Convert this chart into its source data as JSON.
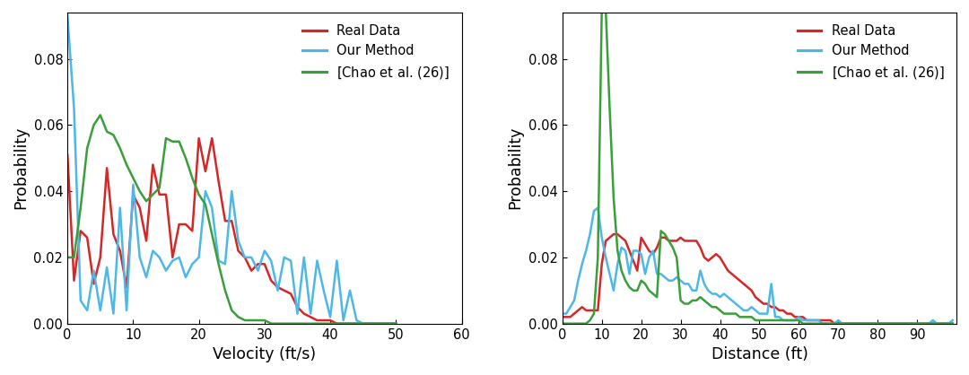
{
  "vel_x": [
    0,
    1,
    2,
    3,
    4,
    5,
    6,
    7,
    8,
    9,
    10,
    11,
    12,
    13,
    14,
    15,
    16,
    17,
    18,
    19,
    20,
    21,
    22,
    23,
    24,
    25,
    26,
    27,
    28,
    29,
    30,
    31,
    32,
    33,
    34,
    35,
    36,
    37,
    38,
    39,
    40,
    41,
    42,
    43,
    44,
    45,
    46,
    47,
    48,
    49,
    50
  ],
  "vel_real": [
    0.051,
    0.013,
    0.028,
    0.026,
    0.012,
    0.02,
    0.047,
    0.027,
    0.022,
    0.011,
    0.039,
    0.035,
    0.025,
    0.048,
    0.039,
    0.039,
    0.02,
    0.03,
    0.03,
    0.028,
    0.056,
    0.046,
    0.056,
    0.043,
    0.031,
    0.031,
    0.022,
    0.02,
    0.016,
    0.018,
    0.018,
    0.013,
    0.011,
    0.01,
    0.009,
    0.005,
    0.003,
    0.002,
    0.001,
    0.001,
    0.001,
    0.0,
    0.0,
    0.0,
    0.0,
    0.0,
    0.0,
    0.0,
    0.0,
    0.0,
    0.0
  ],
  "vel_ours": [
    0.093,
    0.065,
    0.007,
    0.004,
    0.016,
    0.004,
    0.017,
    0.003,
    0.035,
    0.004,
    0.042,
    0.02,
    0.014,
    0.022,
    0.02,
    0.016,
    0.019,
    0.02,
    0.014,
    0.018,
    0.02,
    0.04,
    0.035,
    0.019,
    0.018,
    0.04,
    0.025,
    0.02,
    0.02,
    0.016,
    0.022,
    0.019,
    0.01,
    0.02,
    0.019,
    0.003,
    0.02,
    0.003,
    0.019,
    0.01,
    0.002,
    0.019,
    0.001,
    0.01,
    0.001,
    0.0,
    0.0,
    0.0,
    0.0,
    0.0,
    0.0
  ],
  "vel_chao": [
    0.02,
    0.02,
    0.035,
    0.053,
    0.06,
    0.063,
    0.058,
    0.057,
    0.053,
    0.048,
    0.044,
    0.04,
    0.037,
    0.039,
    0.041,
    0.056,
    0.055,
    0.055,
    0.05,
    0.044,
    0.039,
    0.036,
    0.027,
    0.018,
    0.01,
    0.004,
    0.002,
    0.001,
    0.001,
    0.001,
    0.001,
    0.0,
    0.0,
    0.0,
    0.0,
    0.0,
    0.0,
    0.0,
    0.0,
    0.0,
    0.0,
    0.0,
    0.0,
    0.0,
    0.0,
    0.0,
    0.0,
    0.0,
    0.0,
    0.0,
    0.0
  ],
  "dist_x": [
    0,
    1,
    2,
    3,
    4,
    5,
    6,
    7,
    8,
    9,
    10,
    11,
    12,
    13,
    14,
    15,
    16,
    17,
    18,
    19,
    20,
    21,
    22,
    23,
    24,
    25,
    26,
    27,
    28,
    29,
    30,
    31,
    32,
    33,
    34,
    35,
    36,
    37,
    38,
    39,
    40,
    41,
    42,
    43,
    44,
    45,
    46,
    47,
    48,
    49,
    50,
    51,
    52,
    53,
    54,
    55,
    56,
    57,
    58,
    59,
    60,
    61,
    62,
    63,
    64,
    65,
    66,
    67,
    68,
    69,
    70,
    71,
    72,
    73,
    74,
    75,
    76,
    77,
    78,
    79,
    80,
    81,
    82,
    83,
    84,
    85,
    86,
    87,
    88,
    89,
    90,
    91,
    92,
    93,
    94,
    95,
    96,
    97,
    98,
    99
  ],
  "dist_real": [
    0.002,
    0.002,
    0.002,
    0.003,
    0.004,
    0.005,
    0.004,
    0.004,
    0.004,
    0.004,
    0.018,
    0.025,
    0.026,
    0.027,
    0.027,
    0.026,
    0.025,
    0.022,
    0.019,
    0.016,
    0.026,
    0.024,
    0.022,
    0.021,
    0.023,
    0.026,
    0.026,
    0.025,
    0.025,
    0.025,
    0.026,
    0.025,
    0.025,
    0.025,
    0.025,
    0.023,
    0.02,
    0.019,
    0.02,
    0.021,
    0.02,
    0.018,
    0.016,
    0.015,
    0.014,
    0.013,
    0.012,
    0.011,
    0.01,
    0.008,
    0.007,
    0.006,
    0.006,
    0.005,
    0.005,
    0.004,
    0.004,
    0.003,
    0.003,
    0.002,
    0.002,
    0.002,
    0.001,
    0.001,
    0.001,
    0.001,
    0.001,
    0.001,
    0.001,
    0.0,
    0.0,
    0.0,
    0.0,
    0.0,
    0.0,
    0.0,
    0.0,
    0.0,
    0.0,
    0.0,
    0.0,
    0.0,
    0.0,
    0.0,
    0.0,
    0.0,
    0.0,
    0.0,
    0.0,
    0.0,
    0.0,
    0.0,
    0.0,
    0.0,
    0.0,
    0.0,
    0.0,
    0.0,
    0.0,
    0.0
  ],
  "dist_ours": [
    0.003,
    0.003,
    0.005,
    0.007,
    0.013,
    0.018,
    0.022,
    0.027,
    0.034,
    0.035,
    0.026,
    0.02,
    0.015,
    0.01,
    0.018,
    0.023,
    0.022,
    0.015,
    0.022,
    0.022,
    0.021,
    0.015,
    0.02,
    0.022,
    0.015,
    0.015,
    0.014,
    0.013,
    0.013,
    0.014,
    0.013,
    0.012,
    0.012,
    0.01,
    0.01,
    0.016,
    0.012,
    0.01,
    0.009,
    0.009,
    0.008,
    0.009,
    0.008,
    0.007,
    0.006,
    0.005,
    0.004,
    0.004,
    0.005,
    0.004,
    0.003,
    0.003,
    0.003,
    0.012,
    0.002,
    0.002,
    0.001,
    0.001,
    0.001,
    0.001,
    0.002,
    0.001,
    0.001,
    0.001,
    0.001,
    0.001,
    0.0,
    0.0,
    0.0,
    0.0,
    0.001,
    0.0,
    0.0,
    0.0,
    0.0,
    0.0,
    0.0,
    0.0,
    0.0,
    0.0,
    0.0,
    0.0,
    0.0,
    0.0,
    0.0,
    0.0,
    0.0,
    0.0,
    0.0,
    0.0,
    0.0,
    0.0,
    0.0,
    0.0,
    0.001,
    0.0,
    0.0,
    0.0,
    0.0,
    0.001
  ],
  "dist_chao": [
    0.0,
    0.0,
    0.0,
    0.0,
    0.0,
    0.0,
    0.0,
    0.001,
    0.003,
    0.02,
    0.095,
    0.095,
    0.065,
    0.038,
    0.022,
    0.016,
    0.013,
    0.011,
    0.01,
    0.01,
    0.013,
    0.012,
    0.01,
    0.009,
    0.008,
    0.028,
    0.027,
    0.025,
    0.023,
    0.02,
    0.007,
    0.006,
    0.006,
    0.007,
    0.007,
    0.008,
    0.007,
    0.006,
    0.005,
    0.005,
    0.004,
    0.003,
    0.003,
    0.003,
    0.003,
    0.002,
    0.002,
    0.002,
    0.002,
    0.001,
    0.001,
    0.001,
    0.001,
    0.001,
    0.001,
    0.001,
    0.001,
    0.001,
    0.001,
    0.001,
    0.001,
    0.0,
    0.0,
    0.0,
    0.0,
    0.0,
    0.0,
    0.0,
    0.0,
    0.0,
    0.0,
    0.0,
    0.0,
    0.0,
    0.0,
    0.0,
    0.0,
    0.0,
    0.0,
    0.0,
    0.0,
    0.0,
    0.0,
    0.0,
    0.0,
    0.0,
    0.0,
    0.0,
    0.0,
    0.0,
    0.0,
    0.0,
    0.0,
    0.0,
    0.0,
    0.0,
    0.0,
    0.0,
    0.0,
    0.0
  ],
  "color_real": "#d62728",
  "color_ours": "#4db8e8",
  "color_chao": "#3a9e3a",
  "linewidth": 1.8,
  "vel_xlim": [
    0,
    60
  ],
  "vel_ylim": [
    0,
    0.094
  ],
  "dist_xlim": [
    0,
    100
  ],
  "dist_ylim": [
    0,
    0.094
  ],
  "vel_xticks": [
    0,
    10,
    20,
    30,
    40,
    50,
    60
  ],
  "vel_yticks": [
    0,
    0.02,
    0.04,
    0.06,
    0.08
  ],
  "dist_xticks": [
    0,
    10,
    20,
    30,
    40,
    50,
    60,
    70,
    80,
    90
  ],
  "dist_yticks": [
    0,
    0.02,
    0.04,
    0.06,
    0.08
  ],
  "xlabel_vel": "Velocity (ft/s)",
  "xlabel_dist": "Distance (ft)",
  "ylabel": "Probability",
  "legend_real": "Real Data",
  "legend_ours": "Our Method",
  "legend_fontsize": 10.5,
  "tick_fontsize": 10.5,
  "label_fontsize": 12.5
}
